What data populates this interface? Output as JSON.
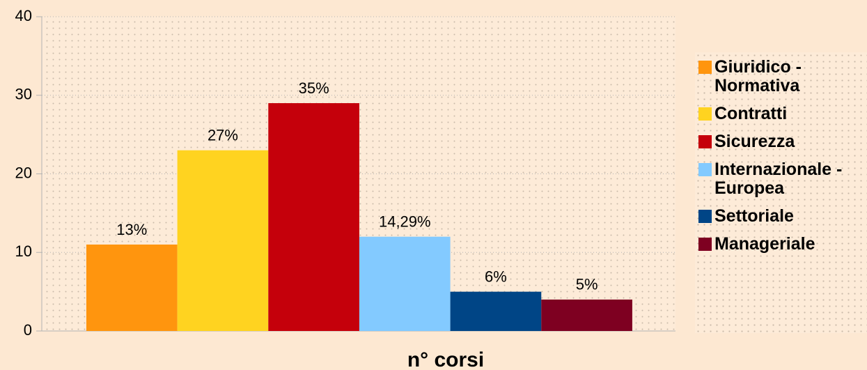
{
  "chart_data": {
    "type": "bar",
    "x_label": "n° corsi",
    "categories": [
      null
    ],
    "series": [
      {
        "name": "Giuridico - Normativa",
        "color": "#ff950e",
        "values": [
          11
        ]
      },
      {
        "name": "Contratti",
        "color": "#ffd320",
        "values": [
          23
        ]
      },
      {
        "name": "Sicurezza",
        "color": "#c5000b",
        "values": [
          29
        ]
      },
      {
        "name": "Internazionale - Europea",
        "color": "#83caff",
        "values": [
          12
        ]
      },
      {
        "name": "Settoriale",
        "color": "#004586",
        "values": [
          5
        ]
      },
      {
        "name": "Manageriale",
        "color": "#7e0021",
        "values": [
          4
        ]
      }
    ],
    "annotations": [
      "13%",
      "27%",
      "35%",
      "14,29%",
      "6%",
      "5%"
    ],
    "ylim": [
      0,
      40
    ],
    "yticks": [
      0,
      10,
      20,
      30,
      40
    ],
    "grid": true,
    "legend": "right"
  }
}
